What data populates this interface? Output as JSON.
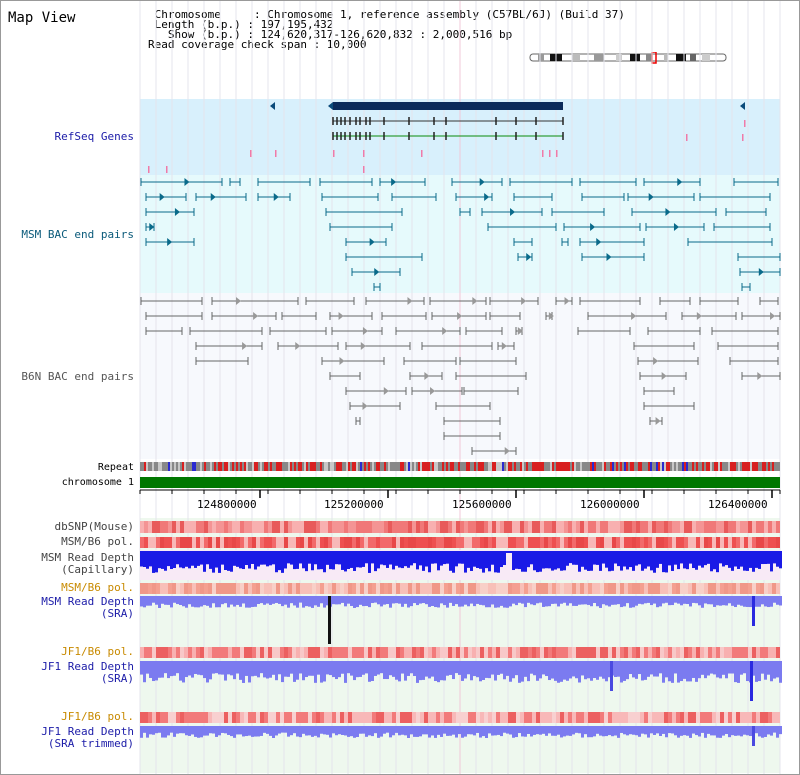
{
  "header": {
    "title": "Map View",
    "info_lines": [
      " Chromosome     : Chromosome 1, reference assembly (C57BL/6J) (Build 37)",
      " Length (b.p.) : 197,195,432",
      "   Show (b.p.) : 124,620,317-126,620,832 : 2,000,516 bp",
      "Read coverage check span : 10,000"
    ]
  },
  "tracks": {
    "refseq": "RefSeq Genes",
    "msm_bac": "MSM BAC end pairs",
    "b6n_bac": "B6N BAC end pairs",
    "repeat": "Repeat",
    "chromosome": "chromosome 1",
    "dbsnp": "dbSNP(Mouse)",
    "msm_b6_pol": "MSM/B6 pol.",
    "msm_depth_cap_1": "MSM Read Depth",
    "msm_depth_cap_2": "(Capillary)",
    "msm_b6_pol_2": "MSM/B6 pol.",
    "msm_depth_sra_1": "MSM Read Depth",
    "msm_depth_sra_2": "(SRA)",
    "jf1_b6_pol": "JF1/B6 pol.",
    "jf1_depth_sra_1": "JF1 Read Depth",
    "jf1_depth_sra_2": "(SRA)",
    "jf1_b6_pol_2": "JF1/B6 pol.",
    "jf1_depth_trim_1": "JF1 Read Depth",
    "jf1_depth_trim_2": "(SRA trimmed)"
  },
  "axis": {
    "ticks": [
      "124800000",
      "125200000",
      "125600000",
      "126000000",
      "126400000"
    ]
  },
  "colors": {
    "refseq_bg": "#d8f0fc",
    "msm_bac_bg": "#e6fafc",
    "b6n_bac_bg": "#f7f9fd",
    "chromosome": "#007700",
    "depth_cap": "#1a1ae6",
    "depth_sra": "#7b7bf0"
  }
}
